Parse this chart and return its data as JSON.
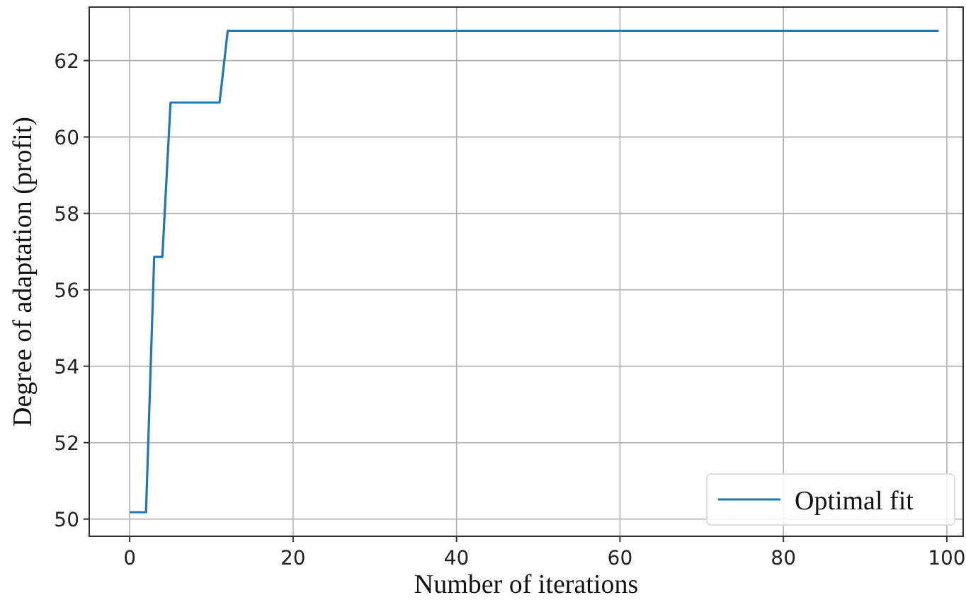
{
  "chart_data": {
    "type": "line",
    "xlabel": "Number of iterations",
    "ylabel": "Degree of adaptation (profit)",
    "xlim": [
      -4.95,
      102
    ],
    "xticks": [
      0,
      20,
      40,
      60,
      80,
      100
    ],
    "ylim": [
      49.55,
      63.4
    ],
    "yticks": [
      50,
      52,
      54,
      56,
      58,
      60,
      62
    ],
    "grid": true,
    "legend": "bottom right",
    "marker": "none",
    "line_style": "solid",
    "series": [
      {
        "name": "Optimal fit",
        "color": "#1f77b4",
        "x": [
          0,
          2,
          3,
          4,
          5,
          11,
          12,
          99
        ],
        "values": [
          50.18,
          50.18,
          56.86,
          56.86,
          60.9,
          60.9,
          62.78,
          62.78
        ]
      }
    ]
  }
}
